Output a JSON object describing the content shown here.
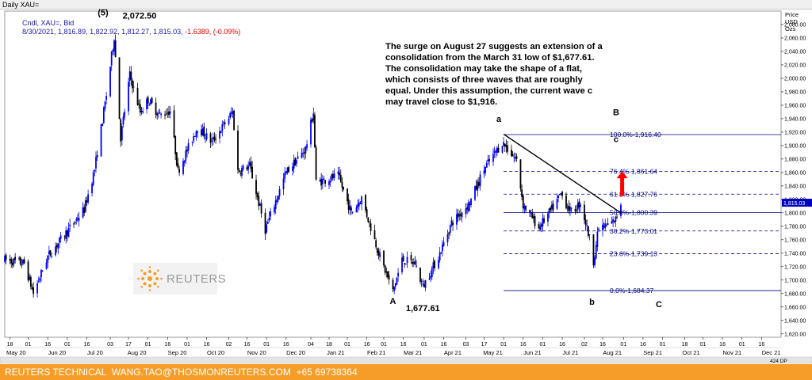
{
  "window": {
    "title": "Daily XAU="
  },
  "header": {
    "ticker": "Cndl, XAU=, Bid",
    "quote": "8/30/2021, 1,816.89, 1,822.92, 1,812.27, 1,815.03, ",
    "change": "-1.6389, (-0.09%)"
  },
  "note": {
    "text": "The surge on August 27 suggests an extension of a consolidation from the March 31 low of $1,677.61. The consolidation may take the shape of a flat, which consists of three waves that are roughly equal. Under this assumption, the current wave c may travel close to $1,916."
  },
  "price_unit": [
    "Price",
    "USD",
    "Ozs"
  ],
  "logo": {
    "text": "REUTERS"
  },
  "footer": {
    "left": "REUTERS TECHNICAL",
    "email": "WANG.TAO@THOSMONREUTERS.COM",
    "phone": "+65 69738364"
  },
  "colors": {
    "up": "#0000ff",
    "down": "#000000",
    "fib": "#000080",
    "arrow": "#ff0000",
    "footer": "#f59d28",
    "last_price": "#0000c0"
  },
  "chart_data": {
    "type": "candlestick",
    "title": "Daily XAU=",
    "ylim": [
      1615,
      2100
    ],
    "xlim": [
      "2020-05-14",
      "2021-12-31"
    ],
    "y_ticks": [
      1620,
      1640,
      1660,
      1680,
      1700,
      1720,
      1740,
      1760,
      1780,
      1800,
      1820,
      1840,
      1860,
      1880,
      1900,
      1920,
      1940,
      1960,
      1980,
      2000,
      2020,
      2040,
      2060,
      2080
    ],
    "y_tick_labels": [
      "1,620.00",
      "1,640.00",
      "1,660.00",
      "1,680.00",
      "1,700.00",
      "1,720.00",
      "1,740.00",
      "1,760.00",
      "1,780.00",
      "1,800.00",
      "1,820.00",
      "1,840.00",
      "1,860.00",
      "1,880.00",
      "1,900.00",
      "1,920.00",
      "1,940.00",
      "1,960.00",
      "1,980.00",
      "2,000.00",
      "2,020.00",
      "2,040.00",
      "2,060.00",
      "2,080.00"
    ],
    "x_day_ticks": [
      [
        "2020-05-18",
        "18"
      ],
      [
        "2020-06-01",
        "01"
      ],
      [
        "2020-06-16",
        "16"
      ],
      [
        "2020-07-01",
        "01"
      ],
      [
        "2020-07-16",
        "16"
      ],
      [
        "2020-08-03",
        "03"
      ],
      [
        "2020-08-17",
        "17"
      ],
      [
        "2020-09-01",
        "01"
      ],
      [
        "2020-09-16",
        "16"
      ],
      [
        "2020-10-01",
        "01"
      ],
      [
        "2020-10-16",
        "16"
      ],
      [
        "2020-11-02",
        "02"
      ],
      [
        "2020-11-16",
        "16"
      ],
      [
        "2020-12-01",
        "01"
      ],
      [
        "2020-12-16",
        "16"
      ],
      [
        "2021-01-04",
        "04"
      ],
      [
        "2021-01-18",
        "18"
      ],
      [
        "2021-02-01",
        "01"
      ],
      [
        "2021-02-16",
        "16"
      ],
      [
        "2021-03-01",
        "01"
      ],
      [
        "2021-03-16",
        "16"
      ],
      [
        "2021-04-01",
        "01"
      ],
      [
        "2021-04-16",
        "16"
      ],
      [
        "2021-05-03",
        "03"
      ],
      [
        "2021-05-17",
        "17"
      ],
      [
        "2021-06-01",
        "01"
      ],
      [
        "2021-06-16",
        "16"
      ],
      [
        "2021-07-01",
        "01"
      ],
      [
        "2021-07-16",
        "16"
      ],
      [
        "2021-08-02",
        "02"
      ],
      [
        "2021-08-16",
        "16"
      ],
      [
        "2021-09-01",
        "01"
      ],
      [
        "2021-09-16",
        "16"
      ],
      [
        "2021-10-01",
        "01"
      ],
      [
        "2021-10-18",
        "18"
      ],
      [
        "2021-11-01",
        "01"
      ],
      [
        "2021-11-16",
        "16"
      ],
      [
        "2021-12-01",
        "01"
      ],
      [
        "2021-12-16",
        "16"
      ]
    ],
    "x_month_labels": [
      [
        "2020-05-14",
        "May 20"
      ],
      [
        "2020-06-15",
        "Jun 20"
      ],
      [
        "2020-07-15",
        "Jul 20"
      ],
      [
        "2020-08-15",
        "Aug 20"
      ],
      [
        "2020-09-15",
        "Sep 20"
      ],
      [
        "2020-10-15",
        "Oct 20"
      ],
      [
        "2020-11-15",
        "Nov 20"
      ],
      [
        "2020-12-15",
        "Dec 20"
      ],
      [
        "2021-01-15",
        "Jan 21"
      ],
      [
        "2021-02-15",
        "Feb 21"
      ],
      [
        "2021-03-15",
        "Mar 21"
      ],
      [
        "2021-04-15",
        "Apr 21"
      ],
      [
        "2021-05-15",
        "May 21"
      ],
      [
        "2021-06-15",
        "Jun 21"
      ],
      [
        "2021-07-15",
        "Jul 21"
      ],
      [
        "2021-08-15",
        "Aug 21"
      ],
      [
        "2021-09-15",
        "Sep 21"
      ],
      [
        "2021-10-15",
        "Oct 21"
      ],
      [
        "2021-11-15",
        "Nov 21"
      ],
      [
        "2021-12-15",
        "Dec 21"
      ]
    ],
    "price_path": [
      [
        "2020-05-14",
        1730
      ],
      [
        "2020-05-29",
        1725
      ],
      [
        "2020-06-05",
        1680
      ],
      [
        "2020-06-16",
        1735
      ],
      [
        "2020-06-30",
        1770
      ],
      [
        "2020-07-14",
        1805
      ],
      [
        "2020-07-22",
        1865
      ],
      [
        "2020-07-31",
        1975
      ],
      [
        "2020-08-06",
        2062
      ],
      [
        "2020-08-11",
        1912
      ],
      [
        "2020-08-18",
        2005
      ],
      [
        "2020-08-26",
        1950
      ],
      [
        "2020-09-01",
        1968
      ],
      [
        "2020-09-10",
        1945
      ],
      [
        "2020-09-18",
        1952
      ],
      [
        "2020-09-24",
        1862
      ],
      [
        "2020-10-09",
        1928
      ],
      [
        "2020-10-20",
        1905
      ],
      [
        "2020-11-05",
        1950
      ],
      [
        "2020-11-09",
        1862
      ],
      [
        "2020-11-18",
        1870
      ],
      [
        "2020-11-30",
        1775
      ],
      [
        "2020-12-16",
        1860
      ],
      [
        "2020-12-31",
        1895
      ],
      [
        "2021-01-06",
        1950
      ],
      [
        "2021-01-08",
        1845
      ],
      [
        "2021-01-25",
        1855
      ],
      [
        "2021-02-04",
        1800
      ],
      [
        "2021-02-12",
        1822
      ],
      [
        "2021-02-26",
        1735
      ],
      [
        "2021-03-08",
        1683
      ],
      [
        "2021-03-15",
        1730
      ],
      [
        "2021-03-25",
        1725
      ],
      [
        "2021-03-31",
        1690
      ],
      [
        "2021-04-12",
        1735
      ],
      [
        "2021-04-22",
        1785
      ],
      [
        "2021-05-06",
        1815
      ],
      [
        "2021-05-17",
        1865
      ],
      [
        "2021-05-31",
        1905
      ],
      [
        "2021-06-11",
        1878
      ],
      [
        "2021-06-16",
        1812
      ],
      [
        "2021-06-28",
        1778
      ],
      [
        "2021-07-09",
        1808
      ],
      [
        "2021-07-15",
        1828
      ],
      [
        "2021-07-23",
        1800
      ],
      [
        "2021-07-30",
        1815
      ],
      [
        "2021-08-06",
        1762
      ],
      [
        "2021-08-09",
        1728
      ],
      [
        "2021-08-13",
        1778
      ],
      [
        "2021-08-20",
        1781
      ],
      [
        "2021-08-26",
        1790
      ],
      [
        "2021-08-30",
        1815.03
      ]
    ],
    "annotations": [
      {
        "label": "(5)",
        "date": "2020-08-06",
        "price": 2072.5
      },
      {
        "label": "2,072.50",
        "date": "2020-08-06",
        "price": 2072.5
      },
      {
        "label": "A",
        "date": "2021-03-08",
        "price": 1683
      },
      {
        "label": "1,677.61",
        "date": "2021-03-31",
        "price": 1677.61
      },
      {
        "label": "a",
        "date": "2021-06-01",
        "price": 1916.4
      },
      {
        "label": "b",
        "date": "2021-08-09",
        "price": 1684.37
      },
      {
        "label": "B",
        "date": "2021-08-30",
        "price": 1945
      },
      {
        "label": "c",
        "date": "2021-08-30",
        "price": 1905
      },
      {
        "label": "C",
        "date": "2021-09-10",
        "price": 1660
      }
    ],
    "fibonacci": {
      "from_date": "2021-06-01",
      "to_date": "2021-09-24",
      "levels": [
        {
          "pct": "100.0%",
          "value": 1916.4,
          "label": "1,916.40"
        },
        {
          "pct": "76.4%",
          "value": 1861.64,
          "label": "1,861.64"
        },
        {
          "pct": "61.8%",
          "value": 1827.76,
          "label": "1,827.76"
        },
        {
          "pct": "50.0%",
          "value": 1800.39,
          "label": "1,800.39"
        },
        {
          "pct": "38.2%",
          "value": 1773.01,
          "label": "1,773.01"
        },
        {
          "pct": "23.6%",
          "value": 1739.13,
          "label": "1,739.13"
        },
        {
          "pct": "0.0%",
          "value": 1684.37,
          "label": "1,684.37"
        }
      ]
    },
    "trendline": [
      [
        "2021-06-01",
        1917
      ],
      [
        "2021-08-30",
        1800
      ]
    ],
    "arrow": {
      "date": "2021-08-31",
      "from": 1825,
      "to": 1862
    },
    "last_price_label": "1,815.03",
    "scroll_label": "424 DP"
  }
}
